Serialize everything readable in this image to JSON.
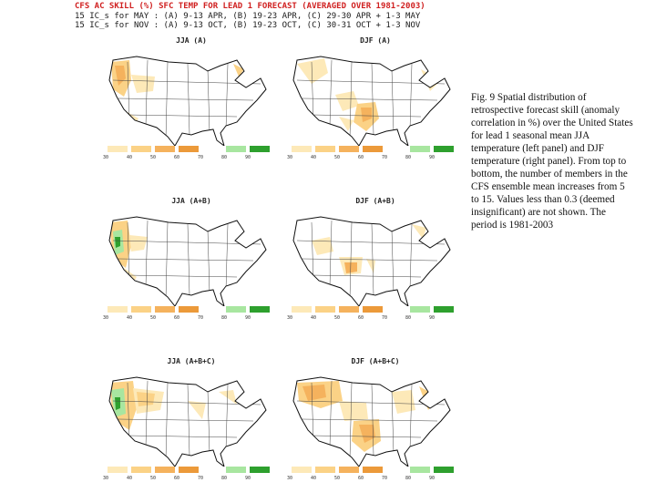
{
  "header": {
    "title": "CFS AC SKILL (%) SFC TEMP FOR LEAD 1 FORECAST (AVERAGED OVER 1981-2003)",
    "line_may": "15 IC_s for MAY : (A) 9-13 APR, (B) 19-23 APR, (C) 29-30 APR + 1-3 MAY",
    "line_nov": "15 IC_s for NOV : (A) 9-13 OCT, (B) 19-23 OCT, (C) 30-31 OCT + 1-3 NOV"
  },
  "colorbar": {
    "ticks": [
      "30",
      "40",
      "50",
      "60",
      "70",
      "80",
      "90"
    ],
    "colors": [
      "#fde9b8",
      "#fbd286",
      "#f5b25d",
      "#ec9a3a",
      "#ffffff",
      "#a8e6a0",
      "#2ea02e"
    ]
  },
  "panels": [
    {
      "label": "JJA (A)",
      "variant": "jja1"
    },
    {
      "label": "DJF (A)",
      "variant": "djf1"
    },
    {
      "label": "JJA (A+B)",
      "variant": "jja2"
    },
    {
      "label": "DJF (A+B)",
      "variant": "djf2"
    },
    {
      "label": "JJA (A+B+C)",
      "variant": "jja3"
    },
    {
      "label": "DJF (A+B+C)",
      "variant": "djf3"
    }
  ],
  "caption": {
    "text": "Fig. 9 Spatial distribution of retrospective forecast skill (anomaly correlation in %) over the United States for lead 1 seasonal mean JJA temperature (left panel) and DJF temperature (right panel). From top to bottom, the number of members in the CFS ensemble mean increases from 5 to 15. Values less than 0.3 (deemed insignificant) are not shown. The period is 1981-2003"
  }
}
